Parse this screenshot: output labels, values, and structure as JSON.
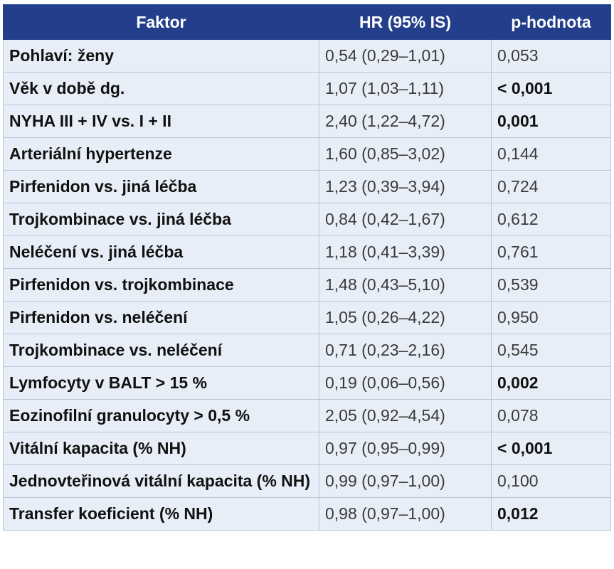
{
  "table": {
    "header": [
      "Faktor",
      "HR (95% IS)",
      "p-hodnota"
    ],
    "rows": [
      {
        "factor": "Pohlaví: ženy",
        "hr": "0,54 (0,29–1,01)",
        "p": "0,053",
        "p_bold": false
      },
      {
        "factor": "Věk v době dg.",
        "hr": "1,07 (1,03–1,11)",
        "p": "< 0,001",
        "p_bold": true
      },
      {
        "factor": "NYHA III + IV vs. I + II",
        "hr": "2,40 (1,22–4,72)",
        "p": "0,001",
        "p_bold": true
      },
      {
        "factor": "Arteriální hypertenze",
        "hr": "1,60 (0,85–3,02)",
        "p": "0,144",
        "p_bold": false
      },
      {
        "factor": "Pirfenidon vs. jiná léčba",
        "hr": "1,23 (0,39–3,94)",
        "p": "0,724",
        "p_bold": false
      },
      {
        "factor": "Trojkombinace vs. jiná léčba",
        "hr": "0,84 (0,42–1,67)",
        "p": "0,612",
        "p_bold": false
      },
      {
        "factor": "Neléčení vs. jiná léčba",
        "hr": "1,18 (0,41–3,39)",
        "p": "0,761",
        "p_bold": false
      },
      {
        "factor": "Pirfenidon vs. trojkombinace",
        "hr": "1,48 (0,43–5,10)",
        "p": "0,539",
        "p_bold": false
      },
      {
        "factor": "Pirfenidon vs. neléčení",
        "hr": "1,05 (0,26–4,22)",
        "p": "0,950",
        "p_bold": false
      },
      {
        "factor": "Trojkombinace vs. neléčení",
        "hr": "0,71 (0,23–2,16)",
        "p": "0,545",
        "p_bold": false
      },
      {
        "factor": "Lymfocyty v BALT > 15 %",
        "hr": "0,19 (0,06–0,56)",
        "p": "0,002",
        "p_bold": true
      },
      {
        "factor": "Eozinofilní granulocyty > 0,5 %",
        "hr": "2,05 (0,92–4,54)",
        "p": "0,078",
        "p_bold": false
      },
      {
        "factor": "Vitální kapacita (% NH)",
        "hr": "0,97 (0,95–0,99)",
        "p": "< 0,001",
        "p_bold": true
      },
      {
        "factor": "Jednovteřinová vitální kapacita (% NH)",
        "hr": "0,99 (0,97–1,00)",
        "p": "0,100",
        "p_bold": false
      },
      {
        "factor": "Transfer koeficient (% NH)",
        "hr": "0,98 (0,97–1,00)",
        "p": "0,012",
        "p_bold": true
      }
    ]
  }
}
